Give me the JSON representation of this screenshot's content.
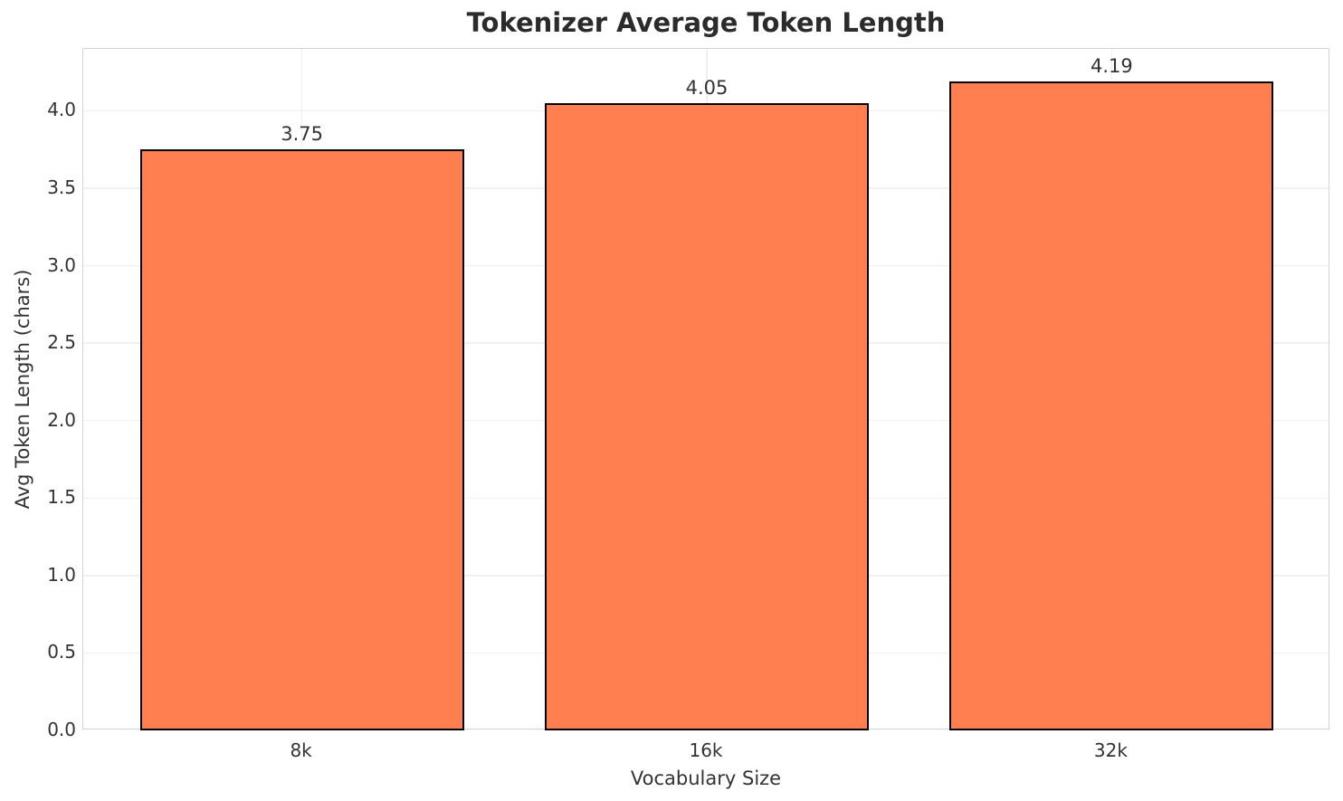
{
  "chart_data": {
    "type": "bar",
    "title": "Tokenizer Average Token Length",
    "xlabel": "Vocabulary Size",
    "ylabel": "Avg Token Length (chars)",
    "categories": [
      "8k",
      "16k",
      "32k"
    ],
    "values": [
      3.75,
      4.05,
      4.19
    ],
    "value_labels": [
      "3.75",
      "4.05",
      "4.19"
    ],
    "ylim": [
      0,
      4.4
    ],
    "yticks": [
      0,
      0.5,
      1,
      1.5,
      2,
      2.5,
      3,
      3.5,
      4
    ],
    "ytick_labels": [
      "0.0",
      "0.5",
      "1.0",
      "1.5",
      "2.0",
      "2.5",
      "3.0",
      "3.5",
      "4.0"
    ],
    "grid": true,
    "legend": "none",
    "colors": {
      "bar_fill": "#FF7F50",
      "bar_edge": "#000000",
      "grid": "#f0f0f0",
      "frame": "#d4d4d4",
      "text": "#333333",
      "title_text": "#2b2b2b",
      "background": "#ffffff"
    }
  }
}
